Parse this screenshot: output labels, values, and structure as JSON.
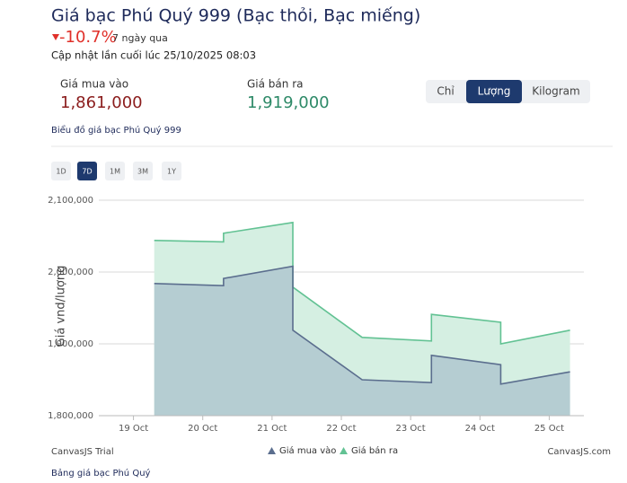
{
  "header": {
    "title": "Giá bạc Phú Quý 999 (Bạc thỏi, Bạc miếng)",
    "change": "-10.7%",
    "change_period": "7 ngày qua",
    "updated": "Cập nhật lần cuối lúc 25/10/2025 08:03"
  },
  "prices": {
    "buy_label": "Giá mua vào",
    "buy_value": "1,861,000",
    "sell_label": "Giá bán ra",
    "sell_value": "1,919,000"
  },
  "unit_buttons": [
    "Chỉ",
    "Lượng",
    "Kilogram"
  ],
  "chart_link": "Biểu đồ giá bạc Phú Quý 999",
  "range_buttons": [
    "1D",
    "7D",
    "1M",
    "3M",
    "1Y"
  ],
  "chart_data": {
    "type": "area",
    "y_title": "Giá vnd/lượng",
    "x": [
      19.3,
      20.3,
      20.3,
      21.3,
      21.3,
      22.3,
      23.3,
      23.3,
      24.3,
      24.3,
      25.3
    ],
    "series": [
      {
        "name": "Giá mua vào",
        "color": "#5b6e8e",
        "fill": "#b5cdd2",
        "values": [
          1984000,
          1981000,
          1991000,
          2008000,
          1919000,
          1850000,
          1846000,
          1884000,
          1871000,
          1844000,
          1861000
        ]
      },
      {
        "name": "Giá bán ra",
        "color": "#62c293",
        "fill": "#d5efe2",
        "values": [
          2044000,
          2042000,
          2054000,
          2069000,
          1979000,
          1909000,
          1904000,
          1941000,
          1930000,
          1900000,
          1919000
        ]
      }
    ],
    "xlim": [
      18.5,
      25.5
    ],
    "xticks": [
      {
        "value": 19,
        "label": "19 Oct"
      },
      {
        "value": 20,
        "label": "20 Oct"
      },
      {
        "value": 21,
        "label": "21 Oct"
      },
      {
        "value": 22,
        "label": "22 Oct"
      },
      {
        "value": 23,
        "label": "23 Oct"
      },
      {
        "value": 24,
        "label": "24 Oct"
      },
      {
        "value": 25,
        "label": "25 Oct"
      }
    ],
    "ylim": [
      1800000,
      2130000
    ],
    "yticks": [
      {
        "value": 1800000,
        "label": "1,800,000"
      },
      {
        "value": 1900000,
        "label": "1,900,000"
      },
      {
        "value": 2000000,
        "label": "2,000,000"
      },
      {
        "value": 2100000,
        "label": "2,100,000"
      }
    ],
    "grid": true,
    "credit_left": "CanvasJS Trial",
    "credit_right": "CanvasJS.com"
  },
  "footer_link": "Bảng giá bạc Phú Quý"
}
